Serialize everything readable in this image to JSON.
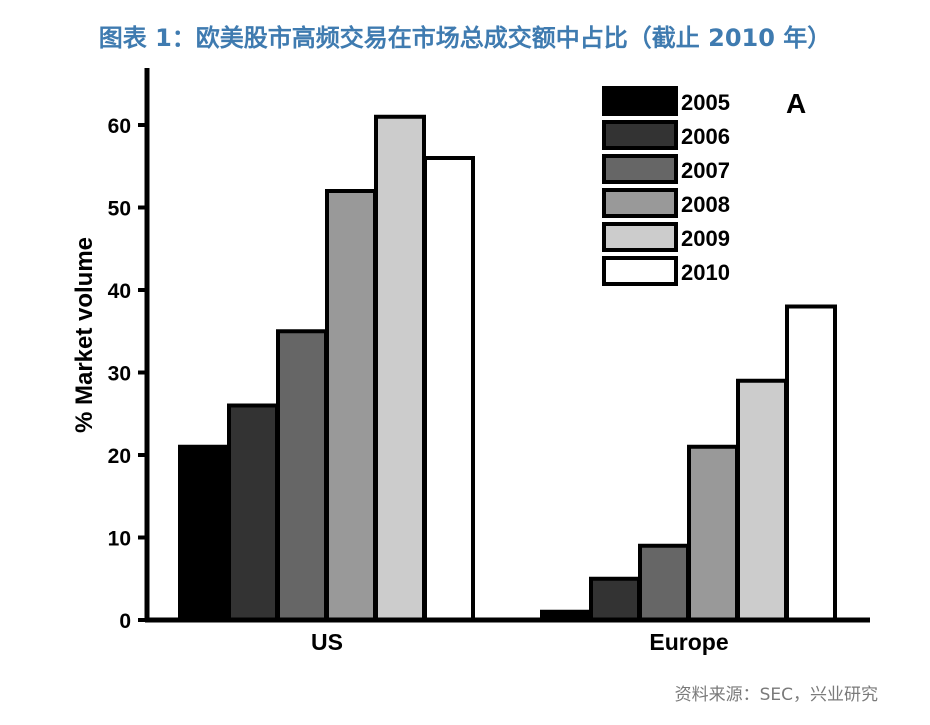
{
  "header": {
    "title": "图表 1：欧美股市高频交易在市场总成交额中占比（截止 2010 年）"
  },
  "footer": {
    "source": "资料来源：SEC，兴业研究"
  },
  "chart_data": {
    "type": "bar",
    "panel_label": "A",
    "categories": [
      "US",
      "Europe"
    ],
    "ylabel": "% Market volume",
    "xlabel": "",
    "ylim": [
      0,
      66
    ],
    "yticks": [
      0,
      10,
      20,
      30,
      40,
      50,
      60
    ],
    "grid": false,
    "legend_position": "top-right",
    "series": [
      {
        "name": "2005",
        "values": [
          21,
          1
        ],
        "color": "#000000"
      },
      {
        "name": "2006",
        "values": [
          26,
          5
        ],
        "color": "#333333"
      },
      {
        "name": "2007",
        "values": [
          35,
          9
        ],
        "color": "#666666"
      },
      {
        "name": "2008",
        "values": [
          52,
          21
        ],
        "color": "#999999"
      },
      {
        "name": "2009",
        "values": [
          61,
          29
        ],
        "color": "#cccccc"
      },
      {
        "name": "2010",
        "values": [
          56,
          38
        ],
        "color": "#ffffff"
      }
    ]
  }
}
